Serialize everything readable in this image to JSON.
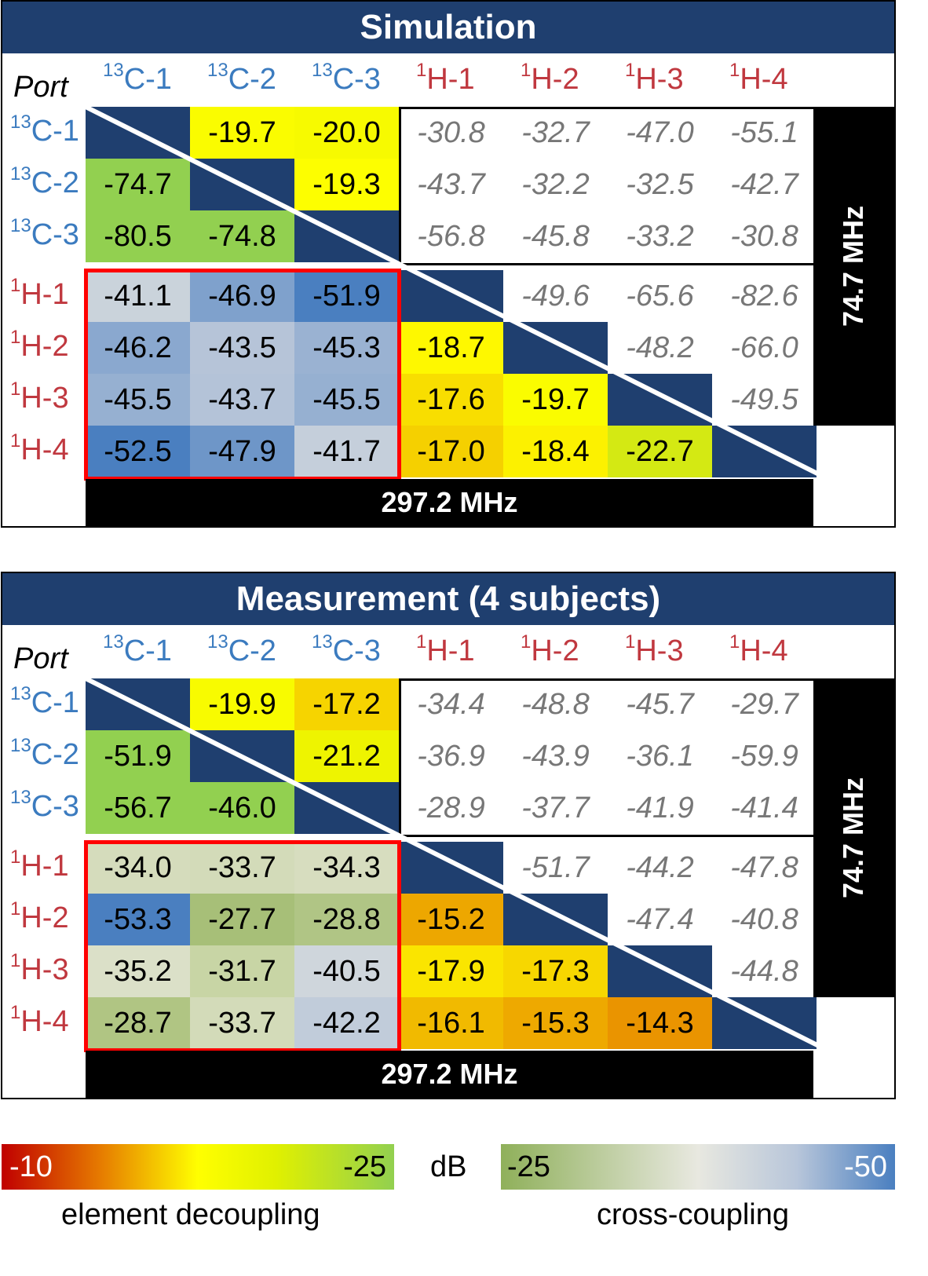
{
  "panels": [
    {
      "title": "Simulation",
      "port_label": "Port",
      "col_labels": [
        {
          "sup": "13",
          "name": "C-1",
          "kind": "c"
        },
        {
          "sup": "13",
          "name": "C-2",
          "kind": "c"
        },
        {
          "sup": "13",
          "name": "C-3",
          "kind": "c"
        },
        {
          "sup": "1",
          "name": "H-1",
          "kind": "h"
        },
        {
          "sup": "1",
          "name": "H-2",
          "kind": "h"
        },
        {
          "sup": "1",
          "name": "H-3",
          "kind": "h"
        },
        {
          "sup": "1",
          "name": "H-4",
          "kind": "h"
        }
      ],
      "row_labels": [
        {
          "sup": "13",
          "name": "C-1",
          "kind": "c"
        },
        {
          "sup": "13",
          "name": "C-2",
          "kind": "c"
        },
        {
          "sup": "13",
          "name": "C-3",
          "kind": "c"
        },
        {
          "sup": "1",
          "name": "H-1",
          "kind": "h"
        },
        {
          "sup": "1",
          "name": "H-2",
          "kind": "h"
        },
        {
          "sup": "1",
          "name": "H-3",
          "kind": "h"
        },
        {
          "sup": "1",
          "name": "H-4",
          "kind": "h"
        }
      ],
      "matrix": [
        [
          null,
          "-19.7",
          "-20.0",
          "-30.8",
          "-32.7",
          "-47.0",
          "-55.1"
        ],
        [
          "-74.7",
          null,
          "-19.3",
          "-43.7",
          "-32.2",
          "-32.5",
          "-42.7"
        ],
        [
          "-80.5",
          "-74.8",
          null,
          "-56.8",
          "-45.8",
          "-33.2",
          "-30.8"
        ],
        [
          "-41.1",
          "-46.9",
          "-51.9",
          null,
          "-49.6",
          "-65.6",
          "-82.6"
        ],
        [
          "-46.2",
          "-43.5",
          "-45.3",
          "-18.7",
          null,
          "-48.2",
          "-66.0"
        ],
        [
          "-45.5",
          "-43.7",
          "-45.5",
          "-17.6",
          "-19.7",
          null,
          "-49.5"
        ],
        [
          "-52.5",
          "-47.9",
          "-41.7",
          "-17.0",
          "-18.4",
          "-22.7",
          null
        ]
      ],
      "bottom_label": "297.2 MHz",
      "right_label": "74.7 MHz"
    },
    {
      "title": "Measurement (4 subjects)",
      "port_label": "Port",
      "col_labels": [
        {
          "sup": "13",
          "name": "C-1",
          "kind": "c"
        },
        {
          "sup": "13",
          "name": "C-2",
          "kind": "c"
        },
        {
          "sup": "13",
          "name": "C-3",
          "kind": "c"
        },
        {
          "sup": "1",
          "name": "H-1",
          "kind": "h"
        },
        {
          "sup": "1",
          "name": "H-2",
          "kind": "h"
        },
        {
          "sup": "1",
          "name": "H-3",
          "kind": "h"
        },
        {
          "sup": "1",
          "name": "H-4",
          "kind": "h"
        }
      ],
      "row_labels": [
        {
          "sup": "13",
          "name": "C-1",
          "kind": "c"
        },
        {
          "sup": "13",
          "name": "C-2",
          "kind": "c"
        },
        {
          "sup": "13",
          "name": "C-3",
          "kind": "c"
        },
        {
          "sup": "1",
          "name": "H-1",
          "kind": "h"
        },
        {
          "sup": "1",
          "name": "H-2",
          "kind": "h"
        },
        {
          "sup": "1",
          "name": "H-3",
          "kind": "h"
        },
        {
          "sup": "1",
          "name": "H-4",
          "kind": "h"
        }
      ],
      "matrix": [
        [
          null,
          "-19.9",
          "-17.2",
          "-34.4",
          "-48.8",
          "-45.7",
          "-29.7"
        ],
        [
          "-51.9",
          null,
          "-21.2",
          "-36.9",
          "-43.9",
          "-36.1",
          "-59.9"
        ],
        [
          "-56.7",
          "-46.0",
          null,
          "-28.9",
          "-37.7",
          "-41.9",
          "-41.4"
        ],
        [
          "-34.0",
          "-33.7",
          "-34.3",
          null,
          "-51.7",
          "-44.2",
          "-47.8"
        ],
        [
          "-53.3",
          "-27.7",
          "-28.8",
          "-15.2",
          null,
          "-47.4",
          "-40.8"
        ],
        [
          "-35.2",
          "-31.7",
          "-40.5",
          "-17.9",
          "-17.3",
          null,
          "-44.8"
        ],
        [
          "-28.7",
          "-33.7",
          "-42.2",
          "-16.1",
          "-15.3",
          "-14.3",
          null
        ]
      ],
      "bottom_label": "297.2 MHz",
      "right_label": "74.7 MHz"
    }
  ],
  "legend": {
    "left_min": "-10",
    "left_max": "-25",
    "unit": "dB",
    "right_min": "-25",
    "right_max": "-50",
    "left_caption": "element decoupling",
    "right_caption": "cross-coupling"
  },
  "colors": {
    "diagonal": "#1f3f6f",
    "decoupling_scale": [
      "#c00000",
      "#e07000",
      "#f0b800",
      "#ffff00",
      "#e8f000",
      "#92d050"
    ],
    "crosscoupling_scale": [
      "#8fb05a",
      "#c6d3a0",
      "#e8e8e0",
      "#b4c3d8",
      "#4a7fc0"
    ],
    "red_box": "#ff0000"
  },
  "chart_data": [
    {
      "type": "heatmap",
      "title": "Simulation",
      "x": [
        "13C-1",
        "13C-2",
        "13C-3",
        "1H-1",
        "1H-2",
        "1H-3",
        "1H-4"
      ],
      "y": [
        "13C-1",
        "13C-2",
        "13C-3",
        "1H-1",
        "1H-2",
        "1H-3",
        "1H-4"
      ],
      "unit": "dB",
      "values": [
        [
          null,
          -19.7,
          -20.0,
          -30.8,
          -32.7,
          -47.0,
          -55.1
        ],
        [
          -74.7,
          null,
          -19.3,
          -43.7,
          -32.2,
          -32.5,
          -42.7
        ],
        [
          -80.5,
          -74.8,
          null,
          -56.8,
          -45.8,
          -33.2,
          -30.8
        ],
        [
          -41.1,
          -46.9,
          -51.9,
          null,
          -49.6,
          -65.6,
          -82.6
        ],
        [
          -46.2,
          -43.5,
          -45.3,
          -18.7,
          null,
          -48.2,
          -66.0
        ],
        [
          -45.5,
          -43.7,
          -45.5,
          -17.6,
          -19.7,
          null,
          -49.5
        ],
        [
          -52.5,
          -47.9,
          -41.7,
          -17.0,
          -18.4,
          -22.7,
          null
        ]
      ]
    },
    {
      "type": "heatmap",
      "title": "Measurement (4 subjects)",
      "x": [
        "13C-1",
        "13C-2",
        "13C-3",
        "1H-1",
        "1H-2",
        "1H-3",
        "1H-4"
      ],
      "y": [
        "13C-1",
        "13C-2",
        "13C-3",
        "1H-1",
        "1H-2",
        "1H-3",
        "1H-4"
      ],
      "unit": "dB",
      "values": [
        [
          null,
          -19.9,
          -17.2,
          -34.4,
          -48.8,
          -45.7,
          -29.7
        ],
        [
          -51.9,
          null,
          -21.2,
          -36.9,
          -43.9,
          -36.1,
          -59.9
        ],
        [
          -56.7,
          -46.0,
          null,
          -28.9,
          -37.7,
          -41.9,
          -41.4
        ],
        [
          -34.0,
          -33.7,
          -34.3,
          null,
          -51.7,
          -44.2,
          -47.8
        ],
        [
          -53.3,
          -27.7,
          -28.8,
          -15.2,
          null,
          -47.4,
          -40.8
        ],
        [
          -35.2,
          -31.7,
          -40.5,
          -17.9,
          -17.3,
          null,
          -44.8
        ],
        [
          -28.7,
          -33.7,
          -42.2,
          -16.1,
          -15.3,
          -14.3,
          null
        ]
      ]
    }
  ]
}
